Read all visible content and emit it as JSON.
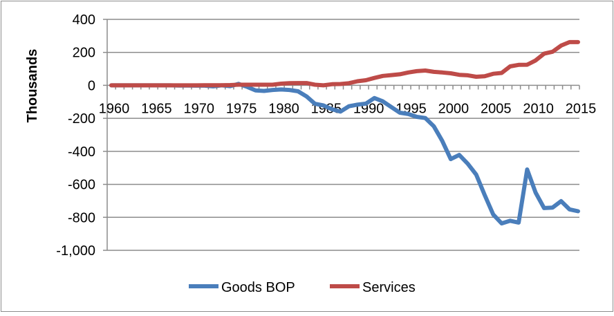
{
  "chart_data": {
    "type": "line",
    "title": "",
    "xlabel": "",
    "ylabel": "Thousands",
    "ylim": [
      -1000,
      400
    ],
    "yticks": [
      400,
      200,
      0,
      -200,
      -400,
      -600,
      -800,
      -1000
    ],
    "ytick_labels": [
      "400",
      "200",
      "0",
      "-200",
      "-400",
      "-600",
      "-800",
      "-1,000"
    ],
    "xtick_labels": [
      "1960",
      "1965",
      "1970",
      "1975",
      "1980",
      "1985",
      "1990",
      "1995",
      "2000",
      "2005",
      "2010",
      "2015"
    ],
    "grid": true,
    "legend": "bottom",
    "x": [
      1960,
      1961,
      1962,
      1963,
      1964,
      1965,
      1966,
      1967,
      1968,
      1969,
      1970,
      1971,
      1972,
      1973,
      1974,
      1975,
      1976,
      1977,
      1978,
      1979,
      1980,
      1981,
      1982,
      1983,
      1984,
      1985,
      1986,
      1987,
      1988,
      1989,
      1990,
      1991,
      1992,
      1993,
      1994,
      1995,
      1996,
      1997,
      1998,
      1999,
      2000,
      2001,
      2002,
      2003,
      2004,
      2005,
      2006,
      2007,
      2008,
      2009,
      2010,
      2011,
      2012,
      2013,
      2014,
      2015
    ],
    "series": [
      {
        "name": "Goods BOP",
        "color": "#4a7ebb",
        "values": [
          0,
          0,
          0,
          0,
          0,
          0,
          0,
          0,
          -1,
          -1,
          -2,
          -2,
          -6,
          0,
          -5,
          9,
          -9,
          -31,
          -34,
          -28,
          -25,
          -28,
          -36,
          -67,
          -112,
          -122,
          -145,
          -159,
          -127,
          -117,
          -111,
          -77,
          -97,
          -132,
          -166,
          -174,
          -191,
          -198,
          -248,
          -337,
          -447,
          -422,
          -475,
          -541,
          -665,
          -783,
          -837,
          -821,
          -832,
          -510,
          -650,
          -744,
          -741,
          -702,
          -752,
          -763
        ]
      },
      {
        "name": "Services",
        "color": "#be4b48",
        "values": [
          0,
          0,
          0,
          0,
          0,
          0,
          0,
          0,
          0,
          0,
          0,
          1,
          1,
          1,
          2,
          4,
          4,
          4,
          4,
          4,
          10,
          13,
          14,
          14,
          4,
          0,
          7,
          8,
          13,
          25,
          31,
          45,
          57,
          62,
          67,
          78,
          86,
          90,
          82,
          78,
          73,
          64,
          61,
          52,
          55,
          70,
          75,
          115,
          124,
          125,
          151,
          192,
          204,
          241,
          262,
          262
        ]
      }
    ]
  }
}
